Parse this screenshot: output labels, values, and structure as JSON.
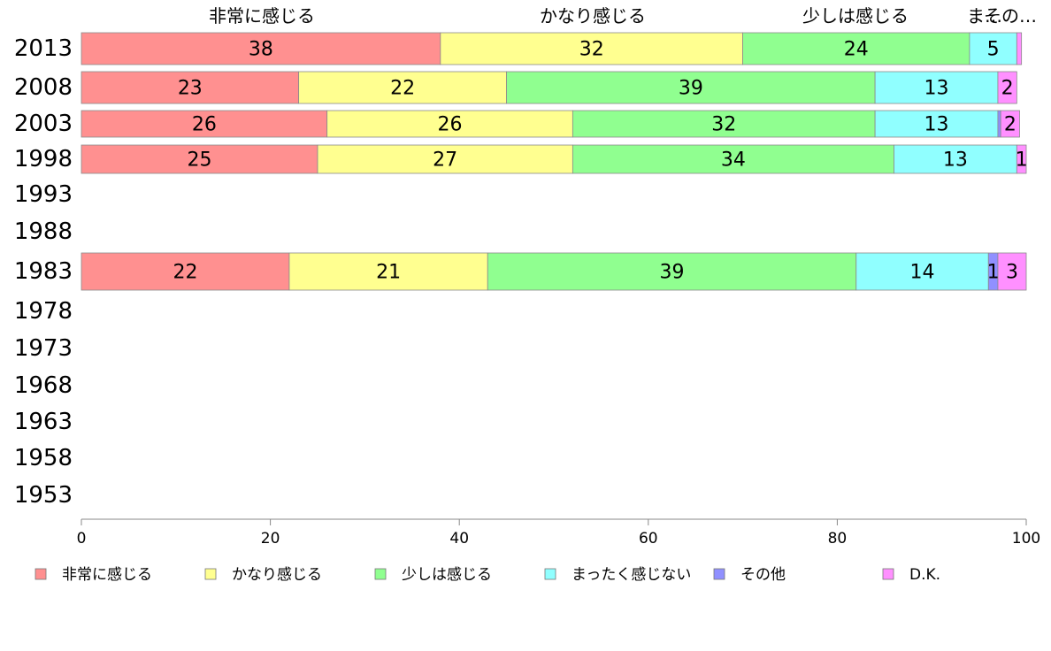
{
  "chart_data": {
    "type": "bar",
    "orientation": "horizontal",
    "stacked": true,
    "categories": [
      "2013",
      "2008",
      "2003",
      "1998",
      "1993",
      "1988",
      "1983",
      "1978",
      "1973",
      "1968",
      "1963",
      "1958",
      "1953"
    ],
    "series": [
      {
        "name": "非常に感じる",
        "color": "#ff9090",
        "values": [
          38,
          23,
          26,
          25,
          null,
          null,
          22,
          null,
          null,
          null,
          null,
          null,
          null
        ]
      },
      {
        "name": "かなり感じる",
        "color": "#ffff90",
        "values": [
          32,
          22,
          26,
          27,
          null,
          null,
          21,
          null,
          null,
          null,
          null,
          null,
          null
        ]
      },
      {
        "name": "少しは感じる",
        "color": "#90ff90",
        "values": [
          24,
          39,
          32,
          34,
          null,
          null,
          39,
          null,
          null,
          null,
          null,
          null,
          null
        ]
      },
      {
        "name": "まったく感じない",
        "color": "#90ffff",
        "values": [
          5,
          13,
          13,
          13,
          null,
          null,
          14,
          null,
          null,
          null,
          null,
          null,
          null
        ]
      },
      {
        "name": "その他",
        "color": "#9090ff",
        "values": [
          0,
          0,
          0.3,
          0,
          null,
          null,
          1,
          null,
          null,
          null,
          null,
          null,
          null
        ]
      },
      {
        "name": "D.K.",
        "color": "#ff90ff",
        "values": [
          0.5,
          2,
          2,
          1,
          null,
          null,
          3,
          null,
          null,
          null,
          null,
          null,
          null
        ]
      }
    ],
    "data_labels": [
      [
        "38",
        "32",
        "24",
        "5",
        "",
        ""
      ],
      [
        "23",
        "22",
        "39",
        "13",
        "",
        "2"
      ],
      [
        "26",
        "26",
        "32",
        "13",
        "",
        "2"
      ],
      [
        "25",
        "27",
        "34",
        "13",
        "",
        "1"
      ],
      [],
      [],
      [
        "22",
        "21",
        "39",
        "14",
        "1",
        "3"
      ],
      [],
      [],
      [],
      [],
      [],
      []
    ],
    "top_labels": [
      "非常に感じる",
      "かなり感じる",
      "少しは感じる",
      "ま…",
      "その…"
    ],
    "xlim": [
      0,
      100
    ],
    "xticks": [
      "0",
      "20",
      "40",
      "60",
      "80",
      "100"
    ],
    "legend_position": "bottom",
    "title": "",
    "xlabel": "",
    "ylabel": ""
  }
}
